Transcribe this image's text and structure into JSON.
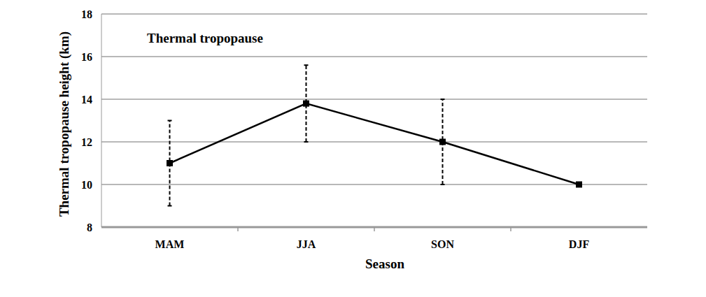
{
  "chart_data": {
    "type": "line",
    "title": "Thermal tropopause",
    "x_label": "Season",
    "y_label": "Thermal tropopause height (km)",
    "categories": [
      "MAM",
      "JJA",
      "SON",
      "DJF"
    ],
    "values": [
      11,
      13.8,
      12,
      10
    ],
    "errors": [
      2,
      1.8,
      2,
      null
    ],
    "color": "#000000",
    "marker": "square",
    "line_style": "solid",
    "ylim": [
      8,
      18
    ],
    "yticks": [
      8,
      10,
      12,
      14,
      16,
      18
    ],
    "grid": true
  }
}
